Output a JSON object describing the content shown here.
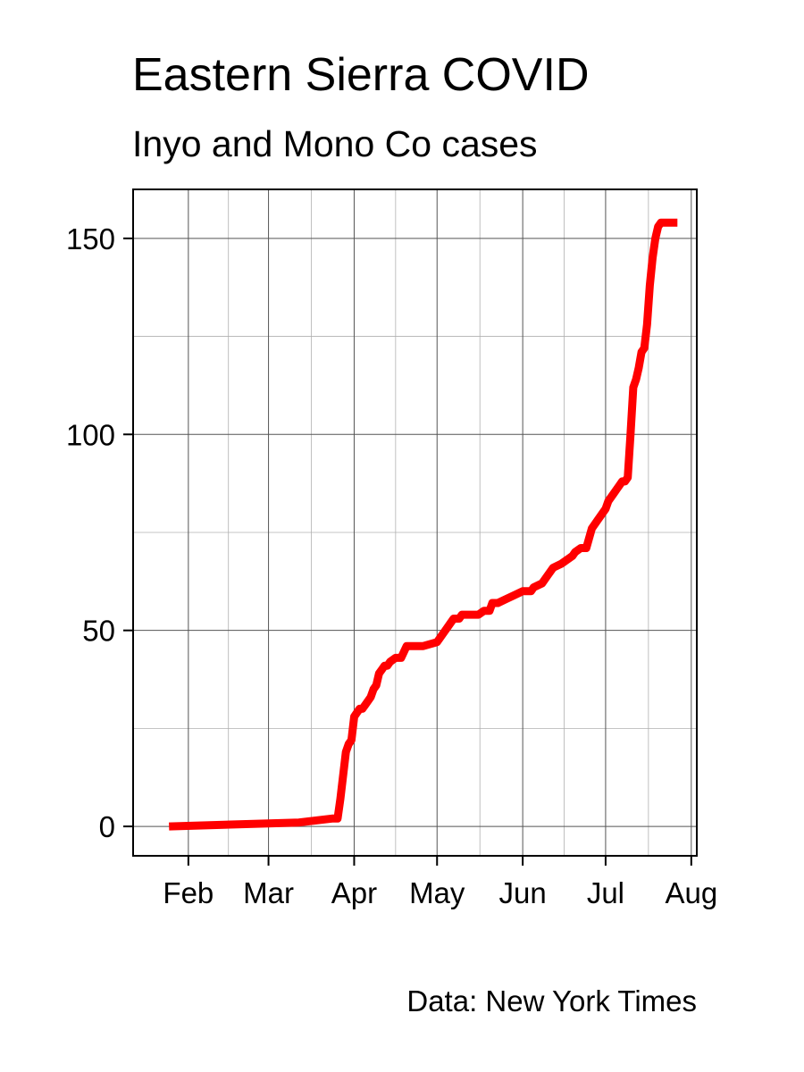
{
  "chart_data": {
    "type": "line",
    "title": "Eastern Sierra COVID",
    "subtitle": "Inyo and Mono Co cases",
    "caption": "Data: New York Times",
    "xlabel": "",
    "ylabel": "",
    "x_ticks": [
      {
        "date": "2020-02-01",
        "label": "Feb"
      },
      {
        "date": "2020-03-01",
        "label": "Mar"
      },
      {
        "date": "2020-04-01",
        "label": "Apr"
      },
      {
        "date": "2020-05-01",
        "label": "May"
      },
      {
        "date": "2020-06-01",
        "label": "Jun"
      },
      {
        "date": "2020-07-01",
        "label": "Jul"
      },
      {
        "date": "2020-08-01",
        "label": "Aug"
      }
    ],
    "y_ticks": [
      0,
      50,
      100,
      150
    ],
    "xlim": [
      "2020-01-12",
      "2020-08-03"
    ],
    "ylim": [
      -7.5,
      162.5
    ],
    "grid": true,
    "line_color": "#ff0000",
    "series": [
      {
        "x": [
          "2020-01-25",
          "2020-03-12",
          "2020-03-24",
          "2020-03-26",
          "2020-03-27",
          "2020-03-28",
          "2020-03-29",
          "2020-03-30",
          "2020-03-31",
          "2020-04-01",
          "2020-04-02",
          "2020-04-03",
          "2020-04-04",
          "2020-04-05",
          "2020-04-07",
          "2020-04-08",
          "2020-04-09",
          "2020-04-10",
          "2020-04-11",
          "2020-04-12",
          "2020-04-13",
          "2020-04-14",
          "2020-04-16",
          "2020-04-18",
          "2020-04-20",
          "2020-04-24",
          "2020-04-25",
          "2020-04-26",
          "2020-05-01",
          "2020-05-04",
          "2020-05-06",
          "2020-05-07",
          "2020-05-08",
          "2020-05-09",
          "2020-05-10",
          "2020-05-12",
          "2020-05-14",
          "2020-05-16",
          "2020-05-18",
          "2020-05-20",
          "2020-05-21",
          "2020-05-22",
          "2020-05-23",
          "2020-05-26",
          "2020-05-29",
          "2020-06-01",
          "2020-06-04",
          "2020-06-05",
          "2020-06-08",
          "2020-06-10",
          "2020-06-12",
          "2020-06-15",
          "2020-06-17",
          "2020-06-19",
          "2020-06-20",
          "2020-06-22",
          "2020-06-24",
          "2020-06-26",
          "2020-06-28",
          "2020-06-30",
          "2020-07-01",
          "2020-07-02",
          "2020-07-03",
          "2020-07-04",
          "2020-07-05",
          "2020-07-06",
          "2020-07-07",
          "2020-07-08",
          "2020-07-09",
          "2020-07-10",
          "2020-07-11",
          "2020-07-12",
          "2020-07-13",
          "2020-07-14",
          "2020-07-15",
          "2020-07-16",
          "2020-07-17",
          "2020-07-18",
          "2020-07-19",
          "2020-07-20",
          "2020-07-21",
          "2020-07-22",
          "2020-07-23",
          "2020-07-24",
          "2020-07-25",
          "2020-07-26",
          "2020-07-27"
        ],
        "y": [
          0,
          1,
          2,
          2,
          7,
          13,
          19,
          21,
          22,
          28,
          29,
          30,
          30,
          31,
          33,
          35,
          36,
          39,
          40,
          41,
          41,
          42,
          43,
          43,
          46,
          46,
          46,
          46,
          47,
          50,
          52,
          53,
          53,
          53,
          54,
          54,
          54,
          54,
          55,
          55,
          57,
          57,
          57,
          58,
          59,
          60,
          60,
          61,
          62,
          64,
          66,
          67,
          68,
          69,
          70,
          71,
          71,
          76,
          78,
          80,
          81,
          83,
          84,
          85,
          86,
          87,
          88,
          88,
          89,
          100,
          112,
          114,
          117,
          121,
          122,
          128,
          138,
          145,
          150,
          153,
          154,
          154,
          154,
          154,
          154,
          154,
          154
        ]
      }
    ]
  }
}
